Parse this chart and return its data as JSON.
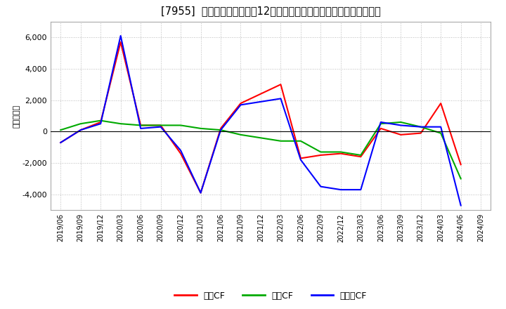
{
  "title": "[7955]  キャッシュフローの12か月移動合計の対前年同期増減額の推移",
  "ylabel": "（百万円）",
  "background_color": "#ffffff",
  "plot_bg_color": "#ffffff",
  "grid_color": "#bbbbbb",
  "ylim": [
    -5000,
    7000
  ],
  "yticks": [
    -4000,
    -2000,
    0,
    2000,
    4000,
    6000
  ],
  "dates": [
    "2019/06",
    "2019/09",
    "2019/12",
    "2020/03",
    "2020/06",
    "2020/09",
    "2020/12",
    "2021/03",
    "2021/06",
    "2021/09",
    "2021/12",
    "2022/03",
    "2022/06",
    "2022/09",
    "2022/12",
    "2023/03",
    "2023/06",
    "2023/09",
    "2023/12",
    "2024/03",
    "2024/06",
    "2024/09"
  ],
  "operating_cf": [
    -700,
    100,
    600,
    5700,
    400,
    400,
    -1400,
    -3900,
    200,
    1800,
    2400,
    3000,
    -1700,
    -1500,
    -1400,
    -1600,
    200,
    -200,
    -100,
    1800,
    -2100,
    null
  ],
  "investing_cf": [
    100,
    500,
    700,
    500,
    400,
    400,
    400,
    200,
    100,
    -200,
    -400,
    -600,
    -600,
    -1300,
    -1300,
    -1500,
    500,
    600,
    300,
    -100,
    -3000,
    null
  ],
  "free_cf": [
    -700,
    100,
    500,
    6100,
    200,
    300,
    -1200,
    -3900,
    100,
    1700,
    1900,
    2100,
    -1800,
    -3500,
    -3700,
    -3700,
    600,
    400,
    300,
    300,
    -4700,
    null
  ],
  "operating_color": "#ff0000",
  "investing_color": "#00aa00",
  "free_color": "#0000ff",
  "legend_labels": [
    "営業CF",
    "投資CF",
    "フリーCF"
  ],
  "line_width": 1.5
}
